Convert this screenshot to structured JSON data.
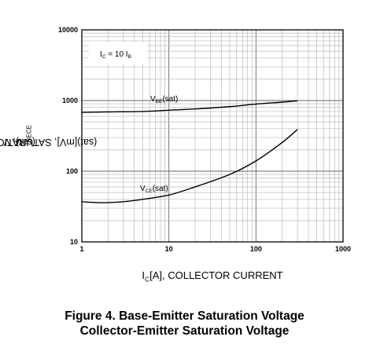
{
  "chart_data": {
    "type": "line",
    "x_scale": "log",
    "y_scale": "log",
    "xlim": [
      1,
      1000
    ],
    "ylim": [
      10,
      10000
    ],
    "x_ticks": [
      "1",
      "10",
      "100",
      "1000"
    ],
    "y_ticks": [
      "10",
      "100",
      "1000",
      "10000"
    ],
    "grid": true,
    "xlabel": {
      "main": "I",
      "sub": "C",
      "rest": "[A], COLLECTOR CURRENT"
    },
    "ylabel": {
      "p1": "V",
      "s1": "BE",
      "p2": "(sat), V",
      "s2": "CE",
      "p3": "(sat)[mV], SATURATION VOLTAGE"
    },
    "condition": {
      "p1": "I",
      "s1": "C",
      "p2": " = 10 I",
      "s2": "B"
    },
    "series": [
      {
        "name": "VBE(sat)",
        "label": {
          "main": "V",
          "sub": "BE",
          "rest": "(sat)"
        },
        "color": "#000000",
        "points": [
          [
            1,
            680
          ],
          [
            2,
            690
          ],
          [
            5,
            700
          ],
          [
            10,
            730
          ],
          [
            20,
            760
          ],
          [
            50,
            820
          ],
          [
            100,
            890
          ],
          [
            200,
            950
          ],
          [
            300,
            990
          ]
        ]
      },
      {
        "name": "VCE(sat)",
        "label": {
          "main": "V",
          "sub": "CE",
          "rest": "(sat)"
        },
        "color": "#000000",
        "points": [
          [
            1,
            37
          ],
          [
            1.5,
            36
          ],
          [
            2,
            36
          ],
          [
            3,
            37
          ],
          [
            5,
            40
          ],
          [
            10,
            46
          ],
          [
            20,
            60
          ],
          [
            50,
            90
          ],
          [
            100,
            140
          ],
          [
            200,
            255
          ],
          [
            300,
            390
          ]
        ]
      }
    ]
  },
  "caption": {
    "line1": "Figure 4. Base-Emitter Saturation Voltage",
    "line2": "Collector-Emitter Saturation Voltage"
  }
}
